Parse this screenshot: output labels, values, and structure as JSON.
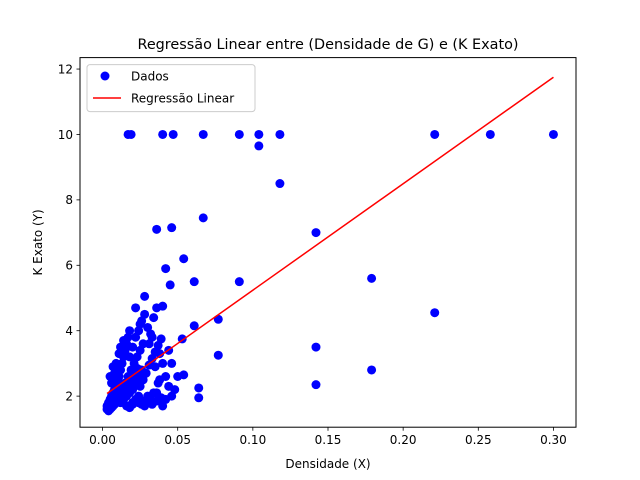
{
  "chart_data": {
    "type": "scatter",
    "title": "Regressão Linear entre (Densidade de G) e (K Exato)",
    "xlabel": "Densidade (X)",
    "ylabel": "K Exato (Y)",
    "xlim": [
      -0.015,
      0.315
    ],
    "ylim": [
      1.05,
      12.35
    ],
    "xticks": [
      0.0,
      0.05,
      0.1,
      0.15,
      0.2,
      0.25,
      0.3
    ],
    "xtick_labels": [
      "0.00",
      "0.05",
      "0.10",
      "0.15",
      "0.20",
      "0.25",
      "0.30"
    ],
    "yticks": [
      2,
      4,
      6,
      8,
      10,
      12
    ],
    "ytick_labels": [
      "2",
      "4",
      "6",
      "8",
      "10",
      "12"
    ],
    "grid": false,
    "legend": {
      "position": "top-left",
      "entries": [
        "Dados",
        "Regressão Linear"
      ]
    },
    "colors": {
      "scatter": "#0000ff",
      "line": "#ff0000"
    },
    "series": [
      {
        "name": "Dados",
        "kind": "scatter",
        "points": [
          [
            0.003,
            1.6
          ],
          [
            0.004,
            1.55
          ],
          [
            0.005,
            1.6
          ],
          [
            0.006,
            1.65
          ],
          [
            0.007,
            1.7
          ],
          [
            0.008,
            1.75
          ],
          [
            0.009,
            1.8
          ],
          [
            0.01,
            1.9
          ],
          [
            0.003,
            1.7
          ],
          [
            0.004,
            1.8
          ],
          [
            0.005,
            1.9
          ],
          [
            0.006,
            2.0
          ],
          [
            0.007,
            2.1
          ],
          [
            0.008,
            2.2
          ],
          [
            0.009,
            2.3
          ],
          [
            0.01,
            2.5
          ],
          [
            0.011,
            2.6
          ],
          [
            0.012,
            2.8
          ],
          [
            0.013,
            3.0
          ],
          [
            0.014,
            3.2
          ],
          [
            0.015,
            3.4
          ],
          [
            0.016,
            3.6
          ],
          [
            0.017,
            3.8
          ],
          [
            0.018,
            4.0
          ],
          [
            0.012,
            1.8
          ],
          [
            0.014,
            1.9
          ],
          [
            0.016,
            2.0
          ],
          [
            0.018,
            2.1
          ],
          [
            0.02,
            2.2
          ],
          [
            0.022,
            2.4
          ],
          [
            0.024,
            2.6
          ],
          [
            0.026,
            2.8
          ],
          [
            0.013,
            2.2
          ],
          [
            0.015,
            2.4
          ],
          [
            0.017,
            2.6
          ],
          [
            0.019,
            2.8
          ],
          [
            0.021,
            3.0
          ],
          [
            0.023,
            3.2
          ],
          [
            0.025,
            3.4
          ],
          [
            0.027,
            3.6
          ],
          [
            0.02,
            1.8
          ],
          [
            0.022,
            1.9
          ],
          [
            0.024,
            2.0
          ],
          [
            0.026,
            1.75
          ],
          [
            0.028,
            1.85
          ],
          [
            0.03,
            2.0
          ],
          [
            0.032,
            1.9
          ],
          [
            0.034,
            2.1
          ],
          [
            0.018,
            3.2
          ],
          [
            0.02,
            3.5
          ],
          [
            0.022,
            3.8
          ],
          [
            0.024,
            4.0
          ],
          [
            0.026,
            4.3
          ],
          [
            0.028,
            4.5
          ],
          [
            0.03,
            4.1
          ],
          [
            0.032,
            3.9
          ],
          [
            0.034,
            4.4
          ],
          [
            0.036,
            4.7
          ],
          [
            0.038,
            3.3
          ],
          [
            0.04,
            3.0
          ],
          [
            0.042,
            2.6
          ],
          [
            0.044,
            2.3
          ],
          [
            0.036,
            2.1
          ],
          [
            0.038,
            2.5
          ],
          [
            0.022,
            4.7
          ],
          [
            0.025,
            4.2
          ],
          [
            0.028,
            5.05
          ],
          [
            0.031,
            3.6
          ],
          [
            0.033,
            3.8
          ],
          [
            0.035,
            2.9
          ],
          [
            0.037,
            2.4
          ],
          [
            0.039,
            1.95
          ],
          [
            0.04,
            1.7
          ],
          [
            0.042,
            1.9
          ],
          [
            0.046,
            2.0
          ],
          [
            0.048,
            2.2
          ],
          [
            0.05,
            2.6
          ],
          [
            0.046,
            3.0
          ],
          [
            0.044,
            3.4
          ],
          [
            0.04,
            4.75
          ],
          [
            0.042,
            5.9
          ],
          [
            0.045,
            5.4
          ],
          [
            0.046,
            7.15
          ],
          [
            0.036,
            7.1
          ],
          [
            0.054,
            6.2
          ],
          [
            0.053,
            3.75
          ],
          [
            0.054,
            2.65
          ],
          [
            0.061,
            5.5
          ],
          [
            0.061,
            4.15
          ],
          [
            0.064,
            2.25
          ],
          [
            0.064,
            1.95
          ],
          [
            0.067,
            7.45
          ],
          [
            0.077,
            4.35
          ],
          [
            0.077,
            3.25
          ],
          [
            0.091,
            5.5
          ],
          [
            0.104,
            9.65
          ],
          [
            0.118,
            8.5
          ],
          [
            0.142,
            7.0
          ],
          [
            0.142,
            3.5
          ],
          [
            0.142,
            2.35
          ],
          [
            0.179,
            5.6
          ],
          [
            0.179,
            2.8
          ],
          [
            0.221,
            4.55
          ],
          [
            0.017,
            10.0
          ],
          [
            0.019,
            10.0
          ],
          [
            0.04,
            10.0
          ],
          [
            0.047,
            10.0
          ],
          [
            0.067,
            10.0
          ],
          [
            0.091,
            10.0
          ],
          [
            0.104,
            10.0
          ],
          [
            0.118,
            10.0
          ],
          [
            0.221,
            10.0
          ],
          [
            0.258,
            10.0
          ],
          [
            0.3,
            10.0
          ],
          [
            0.005,
            2.6
          ],
          [
            0.006,
            2.4
          ],
          [
            0.007,
            2.9
          ],
          [
            0.008,
            2.7
          ],
          [
            0.009,
            3.0
          ],
          [
            0.011,
            3.3
          ],
          [
            0.012,
            3.5
          ],
          [
            0.014,
            3.7
          ],
          [
            0.01,
            2.0
          ],
          [
            0.011,
            2.15
          ],
          [
            0.013,
            2.35
          ],
          [
            0.015,
            2.05
          ],
          [
            0.017,
            2.25
          ],
          [
            0.019,
            2.45
          ],
          [
            0.021,
            2.65
          ],
          [
            0.023,
            2.85
          ],
          [
            0.025,
            2.3
          ],
          [
            0.027,
            2.5
          ],
          [
            0.029,
            2.7
          ],
          [
            0.031,
            2.95
          ],
          [
            0.033,
            3.15
          ],
          [
            0.035,
            3.35
          ],
          [
            0.037,
            3.55
          ],
          [
            0.039,
            3.75
          ],
          [
            0.016,
            1.7
          ],
          [
            0.018,
            1.65
          ],
          [
            0.02,
            1.75
          ],
          [
            0.024,
            1.8
          ],
          [
            0.028,
            1.7
          ],
          [
            0.03,
            1.8
          ],
          [
            0.033,
            1.75
          ],
          [
            0.036,
            1.85
          ]
        ]
      },
      {
        "name": "Regressão Linear",
        "kind": "line",
        "points": [
          [
            0.003,
            2.08
          ],
          [
            0.3,
            11.75
          ]
        ]
      }
    ]
  }
}
